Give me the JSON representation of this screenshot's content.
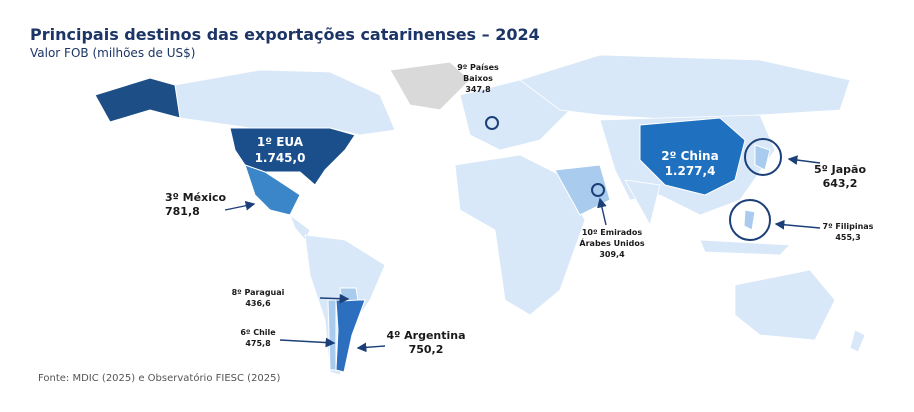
{
  "header": {
    "title": "Principais destinos das exportações catarinenses – 2024",
    "subtitle": "Valor FOB (milhões de US$)"
  },
  "labels": [
    {
      "lines": [
        "1º EUA"
      ],
      "value": "1.745,0"
    },
    {
      "lines": [
        "2º China"
      ],
      "value": "1.277,4"
    },
    {
      "lines": [
        "3º México"
      ],
      "value": "781,8"
    },
    {
      "lines": [
        "4º Argentina"
      ],
      "value": "750,2"
    },
    {
      "lines": [
        "5º Japão"
      ],
      "value": "643,2"
    },
    {
      "lines": [
        "6º Chile"
      ],
      "value": "475,8"
    },
    {
      "lines": [
        "7º Filipinas"
      ],
      "value": "455,3"
    },
    {
      "lines": [
        "8º Paraguai"
      ],
      "value": "436,6"
    },
    {
      "lines": [
        "9º Países",
        "Baixos"
      ],
      "value": "347,8"
    },
    {
      "lines": [
        "10º Emirados",
        "Árabes Unidos"
      ],
      "value": "309,4"
    }
  ],
  "source": "Fonte: MDIC (2025) e Observatório FIESC (2025)"
}
